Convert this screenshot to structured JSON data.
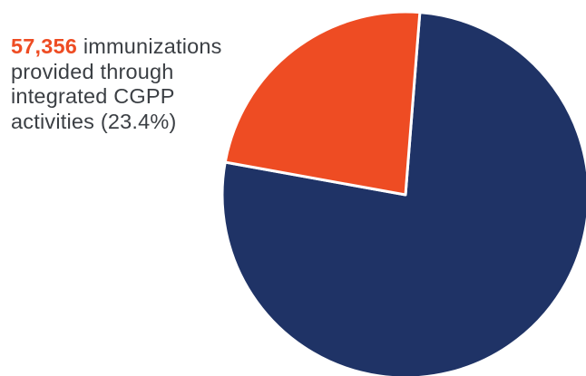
{
  "chart_data": {
    "type": "pie",
    "series": [
      {
        "values": [
          23.4,
          76.6
        ],
        "colors": [
          "#ee4c23",
          "#1f3366"
        ]
      }
    ],
    "slice_separator_color": "#ffffff",
    "annotation": {
      "value": "57,356",
      "lines": [
        "immunizations",
        "provided through",
        "integrated CGPP",
        "activities (23.4%)"
      ],
      "highlight_color": "#ee4c23",
      "text_color": "#3b3f44"
    }
  }
}
